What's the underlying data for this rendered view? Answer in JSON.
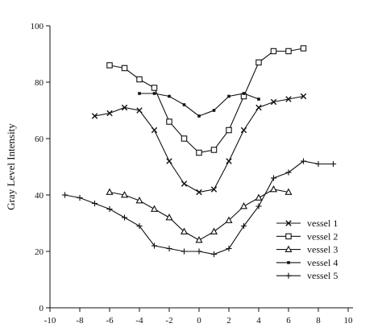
{
  "chart_data": {
    "type": "line",
    "title": "",
    "xlabel": "",
    "ylabel": "Gray Level Intensity",
    "xlim": [
      -10,
      10
    ],
    "ylim": [
      0,
      100
    ],
    "xticks": [
      -10,
      -8,
      -6,
      -4,
      -2,
      0,
      2,
      4,
      6,
      8,
      10
    ],
    "yticks": [
      0,
      20,
      40,
      60,
      80,
      100
    ],
    "grid": false,
    "legend_position": "lower-right",
    "line_color": "#111111",
    "series": [
      {
        "name": "vessel 1",
        "marker": "x",
        "x": [
          -7,
          -6,
          -5,
          -4,
          -3,
          -2,
          -1,
          0,
          1,
          2,
          3,
          4,
          5,
          6,
          7
        ],
        "y": [
          68,
          69,
          71,
          70,
          63,
          52,
          44,
          41,
          42,
          52,
          63,
          71,
          73,
          74,
          75
        ]
      },
      {
        "name": "vessel 2",
        "marker": "square",
        "x": [
          -6,
          -5,
          -4,
          -3,
          -2,
          -1,
          0,
          1,
          2,
          3,
          4,
          5,
          6,
          7
        ],
        "y": [
          86,
          85,
          81,
          78,
          66,
          60,
          55,
          56,
          63,
          75,
          87,
          91,
          91,
          92
        ]
      },
      {
        "name": "vessel 3",
        "marker": "triangle",
        "x": [
          -6,
          -5,
          -4,
          -3,
          -2,
          -1,
          0,
          1,
          2,
          3,
          4,
          5,
          6
        ],
        "y": [
          41,
          40,
          38,
          35,
          32,
          27,
          24,
          27,
          31,
          36,
          39,
          42,
          41
        ]
      },
      {
        "name": "vessel 4",
        "marker": "dot",
        "x": [
          -4,
          -3,
          -2,
          -1,
          0,
          1,
          2,
          3,
          4
        ],
        "y": [
          76,
          76,
          75,
          72,
          68,
          70,
          75,
          76,
          74
        ]
      },
      {
        "name": "vessel 5",
        "marker": "plus",
        "x": [
          -9,
          -8,
          -7,
          -6,
          -5,
          -4,
          -3,
          -2,
          -1,
          0,
          1,
          2,
          3,
          4,
          5,
          6,
          7,
          8,
          9
        ],
        "y": [
          40,
          39,
          37,
          35,
          32,
          29,
          22,
          21,
          20,
          20,
          19,
          21,
          29,
          36,
          46,
          48,
          52,
          51,
          51
        ]
      }
    ]
  }
}
